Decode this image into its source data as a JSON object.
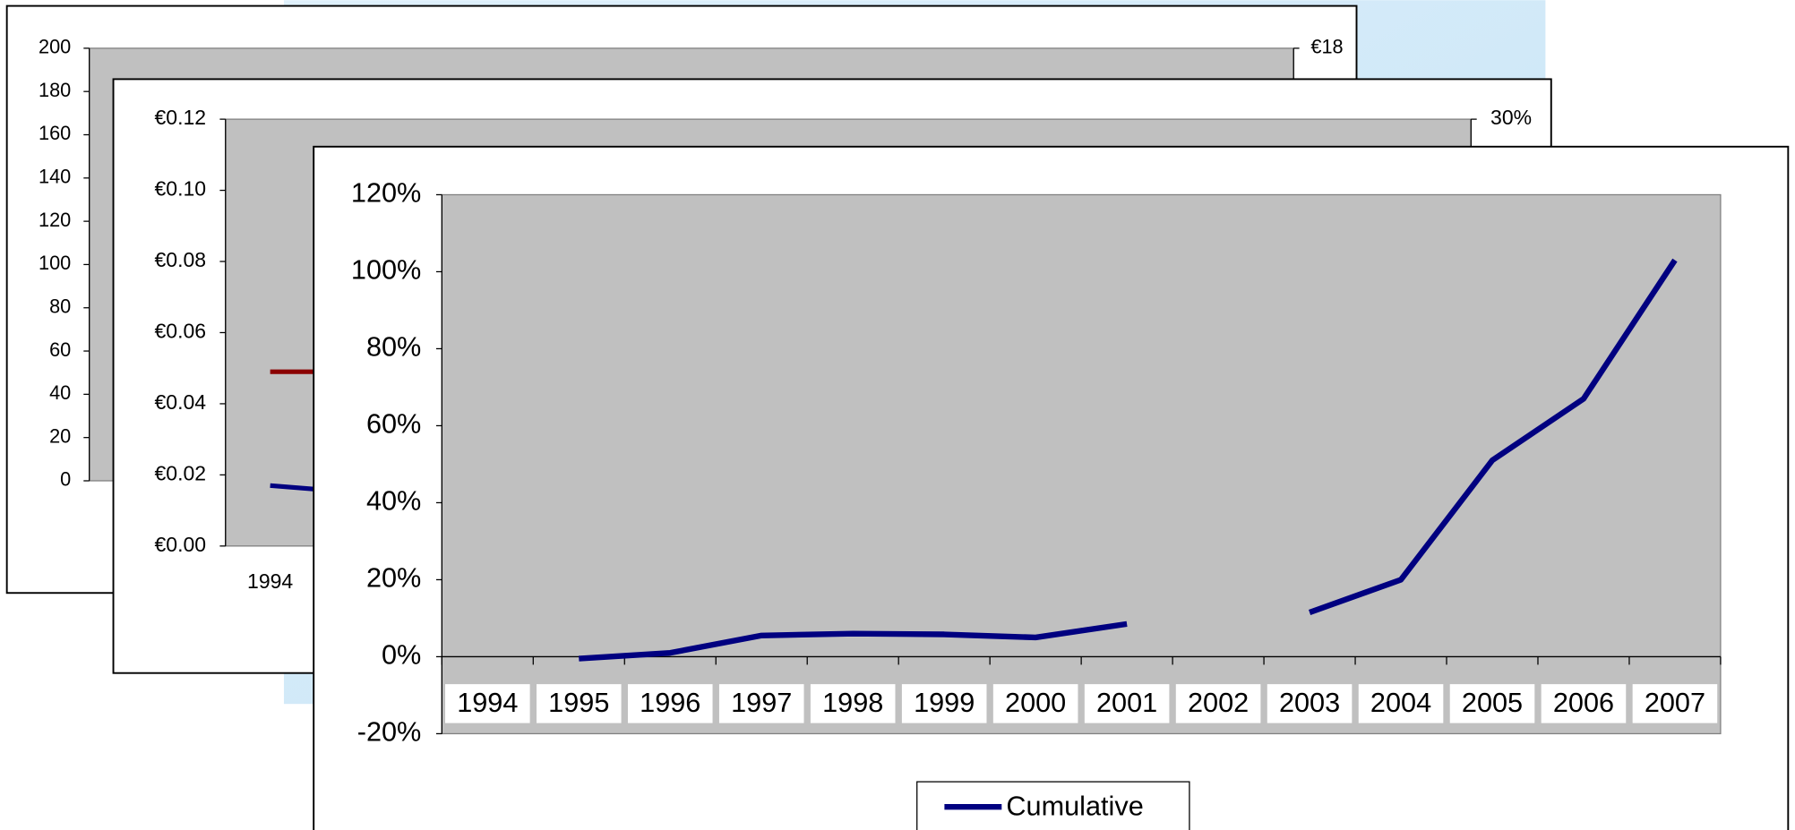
{
  "chart_data": [
    {
      "type": "line",
      "ylim": [
        0,
        200
      ],
      "yticks": [
        0,
        20,
        40,
        60,
        80,
        100,
        120,
        140,
        160,
        180,
        200
      ],
      "y2lim": [
        0,
        18
      ],
      "y2ticks": [
        {
          "value": 18,
          "label": "€18"
        }
      ]
    },
    {
      "type": "line",
      "categories": [
        "1994",
        null
      ],
      "series": [
        {
          "color": "#8b0000",
          "values": [
            0.049,
            0.049
          ]
        },
        {
          "color": "#000080",
          "values": [
            0.017,
            0.016
          ]
        }
      ],
      "ylim": [
        0,
        0.12
      ],
      "yticks": [
        {
          "value": 0,
          "label": "€0.00"
        },
        {
          "value": 0.02,
          "label": "€0.02"
        },
        {
          "value": 0.04,
          "label": "€0.04"
        },
        {
          "value": 0.06,
          "label": "€0.06"
        },
        {
          "value": 0.08,
          "label": "€0.08"
        },
        {
          "value": 0.1,
          "label": "€0.10"
        },
        {
          "value": 0.12,
          "label": "€0.12"
        }
      ],
      "y2lim": [
        0,
        30
      ],
      "y2ticks": [
        {
          "value": 30,
          "label": "30%"
        }
      ]
    },
    {
      "type": "line",
      "categories": [
        "1994",
        "1995",
        "1996",
        "1997",
        "1998",
        "1999",
        "2000",
        "2001",
        "2002",
        "2003",
        "2004",
        "2005",
        "2006",
        "2007"
      ],
      "series": [
        {
          "name": "Cumulative",
          "color": "#000080",
          "values": [
            null,
            -0.5,
            1,
            5.5,
            6,
            5.8,
            5,
            8.5,
            null,
            11.5,
            20,
            51,
            67,
            103
          ]
        }
      ],
      "ylim": [
        -20,
        120
      ],
      "yticks": [
        {
          "value": -20,
          "label": "-20%"
        },
        {
          "value": 0,
          "label": "0%"
        },
        {
          "value": 20,
          "label": "20%"
        },
        {
          "value": 40,
          "label": "40%"
        },
        {
          "value": 60,
          "label": "60%"
        },
        {
          "value": 80,
          "label": "80%"
        },
        {
          "value": 100,
          "label": "100%"
        },
        {
          "value": 120,
          "label": "120%"
        }
      ],
      "legend": "bottom"
    }
  ]
}
